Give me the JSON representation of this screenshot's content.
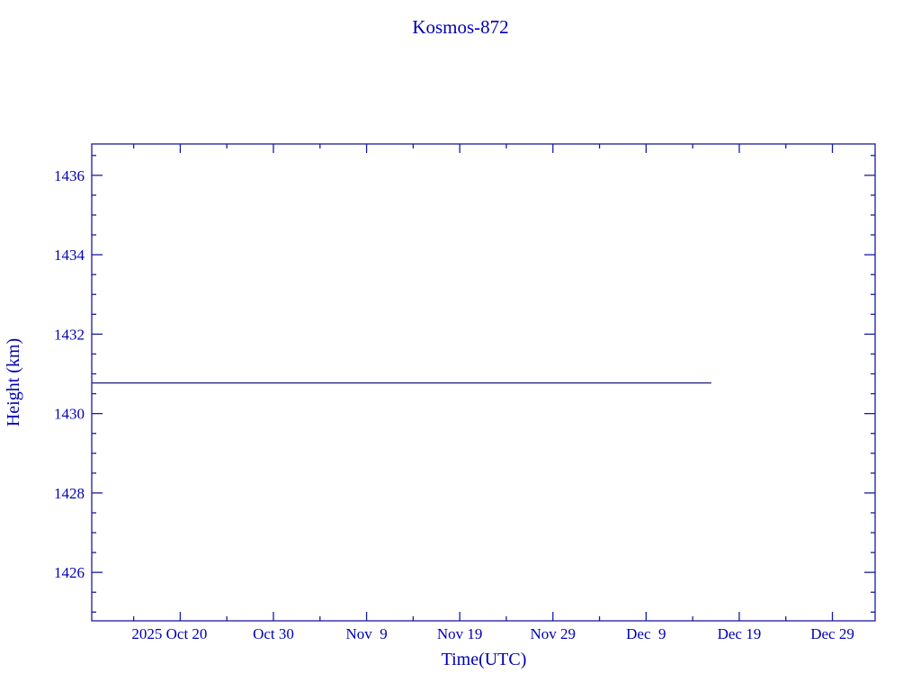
{
  "chart_data": {
    "type": "line",
    "title": "Kosmos-872",
    "xlabel": "Time(UTC)",
    "ylabel": "Height (km)",
    "xlim": [
      "2025-10-10T12:00",
      "2026-01-02T14:00"
    ],
    "ylim": [
      1424.78,
      1436.79
    ],
    "x_ticks": [
      {
        "date": "2025-10-20",
        "label": "2025 Oct 20"
      },
      {
        "date": "2025-10-30",
        "label": "Oct 30"
      },
      {
        "date": "2025-11-09",
        "label": "Nov  9"
      },
      {
        "date": "2025-11-19",
        "label": "Nov 19"
      },
      {
        "date": "2025-11-29",
        "label": "Nov 29"
      },
      {
        "date": "2025-12-09",
        "label": "Dec  9"
      },
      {
        "date": "2025-12-19",
        "label": "Dec 19"
      },
      {
        "date": "2025-12-29",
        "label": "Dec 29"
      }
    ],
    "y_ticks": [
      1426,
      1428,
      1430,
      1432,
      1434,
      1436
    ],
    "grid": false,
    "series": [
      {
        "x": [
          "2025-10-10T12:00",
          "2025-12-16T00:00"
        ],
        "y": [
          1430.77,
          1430.77
        ]
      }
    ],
    "colors": {
      "axis": "#1a1aa0",
      "text": "#0000b4",
      "line": "#1a1a80"
    }
  }
}
